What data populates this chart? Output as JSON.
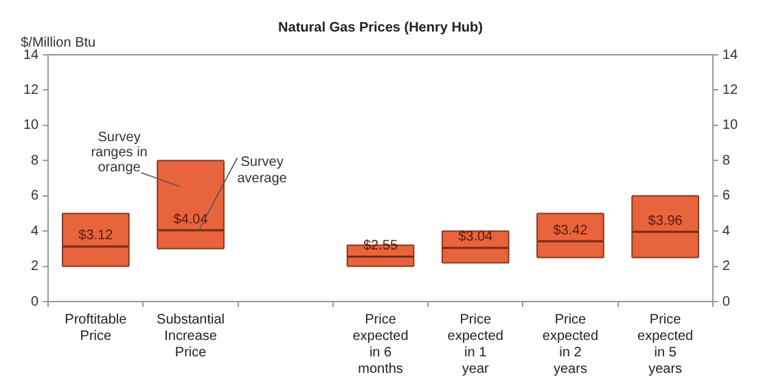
{
  "chart_data": {
    "type": "box",
    "title": "Natural Gas Prices (Henry Hub)",
    "ylabel": "$/Million Btu",
    "categories": [
      "Proftitable Price",
      "Substantial Increase Price",
      null,
      "Price expected in 6 months",
      "Price expected in 1 year",
      "Price expected in 2 years",
      "Price expected in 5 years"
    ],
    "color": "#e8643c",
    "boxes": [
      {
        "low": 2,
        "q1": 2,
        "median": 3.12,
        "q3": 5,
        "high": 5
      },
      {
        "low": 3,
        "q1": 3,
        "median": 4.04,
        "q3": 8,
        "high": 8
      },
      null,
      {
        "low": 2,
        "q1": 2,
        "median": 2.55,
        "q3": 3.2,
        "high": 3.2
      },
      {
        "low": 2.2,
        "q1": 2.2,
        "median": 3.04,
        "q3": 4,
        "high": 4
      },
      {
        "low": 2.5,
        "q1": 2.5,
        "median": 3.42,
        "q3": 5,
        "high": 5
      },
      {
        "low": 2.5,
        "q1": 2.5,
        "median": 3.96,
        "q3": 6,
        "high": 6
      }
    ],
    "value_labels": [
      "$3.12",
      "$4.04",
      null,
      "$2.55",
      "$3.04",
      "$3.42",
      "$3.96"
    ],
    "annotations": [
      "Survey ranges in orange",
      {
        "text": "Survey average",
        "x": "Substantial Increase Price",
        "y": 4.04
      }
    ],
    "ylim": [
      0,
      14
    ],
    "yticks": [
      0,
      2,
      4,
      6,
      8,
      10,
      12,
      14
    ],
    "y2lim": [
      0,
      14
    ],
    "y2ticks": [
      0,
      2,
      4,
      6,
      8,
      10,
      12,
      14
    ],
    "grid": false,
    "legend": false
  }
}
